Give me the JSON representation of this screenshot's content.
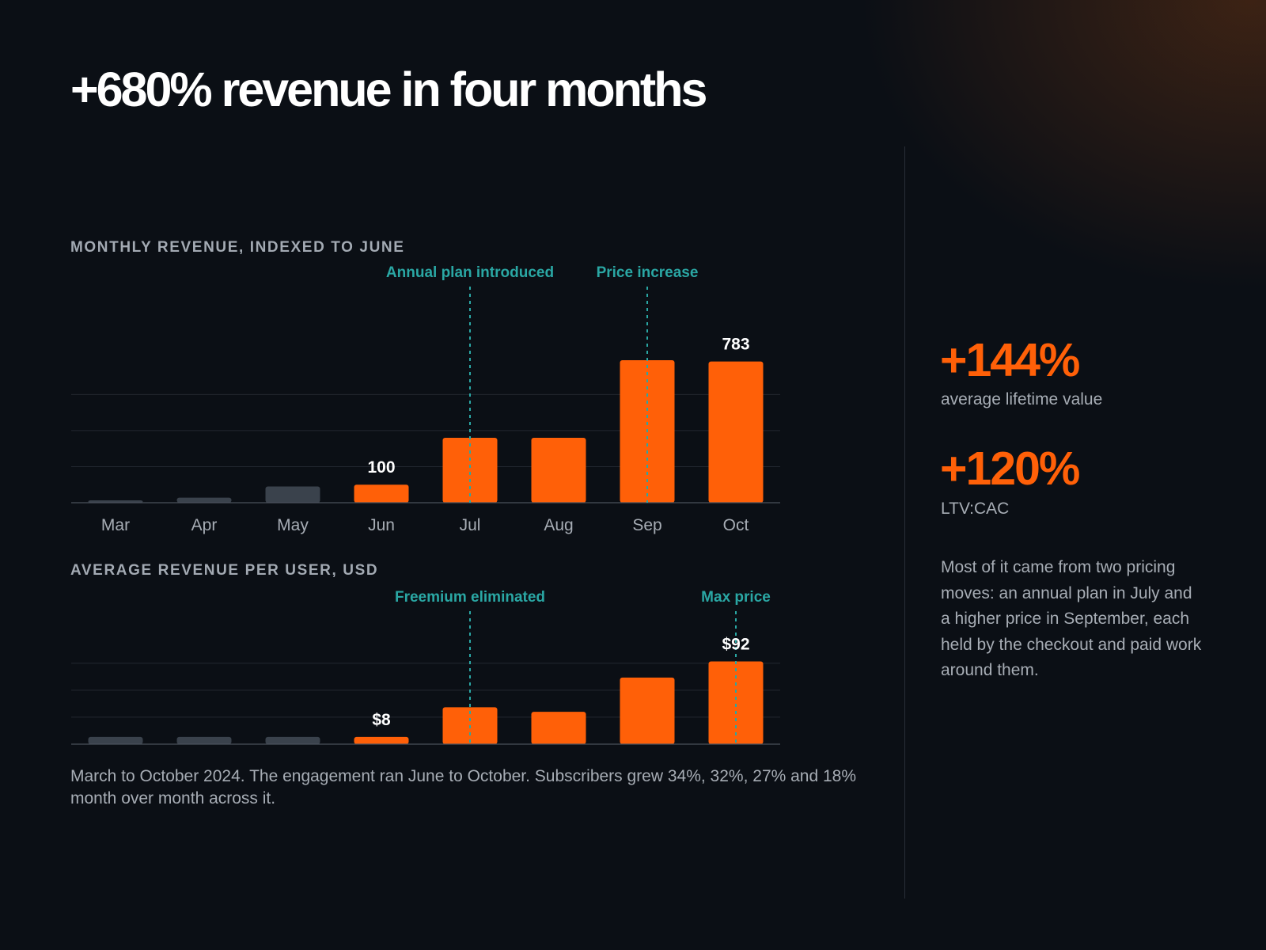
{
  "headline": "+680% revenue in four months",
  "colors": {
    "accent": "#ff6008",
    "muted_bar": "#3a424c",
    "annotation": "#2aa7a4",
    "background": "#0b0f15",
    "text_muted": "#a7adb5"
  },
  "chart_data": [
    {
      "type": "bar",
      "title": "MONTHLY REVENUE, INDEXED TO JUNE",
      "categories": [
        "Mar",
        "Apr",
        "May",
        "Jun",
        "Jul",
        "Aug",
        "Sep",
        "Oct"
      ],
      "values": [
        13,
        28,
        90,
        100,
        360,
        360,
        790,
        783
      ],
      "highlight_from_index": 3,
      "data_labels": [
        {
          "category": "Jun",
          "text": "100"
        },
        {
          "category": "Oct",
          "text": "783"
        }
      ],
      "annotations": [
        {
          "category": "Jul",
          "text": "Annual plan introduced"
        },
        {
          "category": "Sep",
          "text": "Price increase"
        }
      ],
      "ylim": [
        0,
        900
      ],
      "grid": true,
      "grid_lines": [
        200,
        400,
        600
      ]
    },
    {
      "type": "bar",
      "title": "AVERAGE REVENUE PER USER, USD",
      "categories": [
        "Mar",
        "Apr",
        "May",
        "Jun",
        "Jul",
        "Aug",
        "Sep",
        "Oct"
      ],
      "values": [
        8,
        8,
        8,
        8,
        41,
        36,
        74,
        92
      ],
      "highlight_from_index": 3,
      "data_labels": [
        {
          "category": "Jun",
          "text": "$8"
        },
        {
          "category": "Oct",
          "text": "$92"
        }
      ],
      "annotations": [
        {
          "category": "Jul",
          "text": "Freemium eliminated"
        },
        {
          "category": "Oct",
          "text": "Max price"
        }
      ],
      "ylim": [
        0,
        110
      ],
      "grid": true,
      "grid_lines": [
        30,
        60,
        90
      ]
    }
  ],
  "caption": "March to October 2024. The engagement ran June to October. Subscribers grew 34%, 32%, 27% and 18% month over month across it.",
  "stats": [
    {
      "value": "+144%",
      "label": "average lifetime value"
    },
    {
      "value": "+120%",
      "label": "LTV:CAC"
    }
  ],
  "side_text": "Most of it came from two pricing moves: an annual plan in July and a higher price in September, each held by the checkout and paid work around them."
}
